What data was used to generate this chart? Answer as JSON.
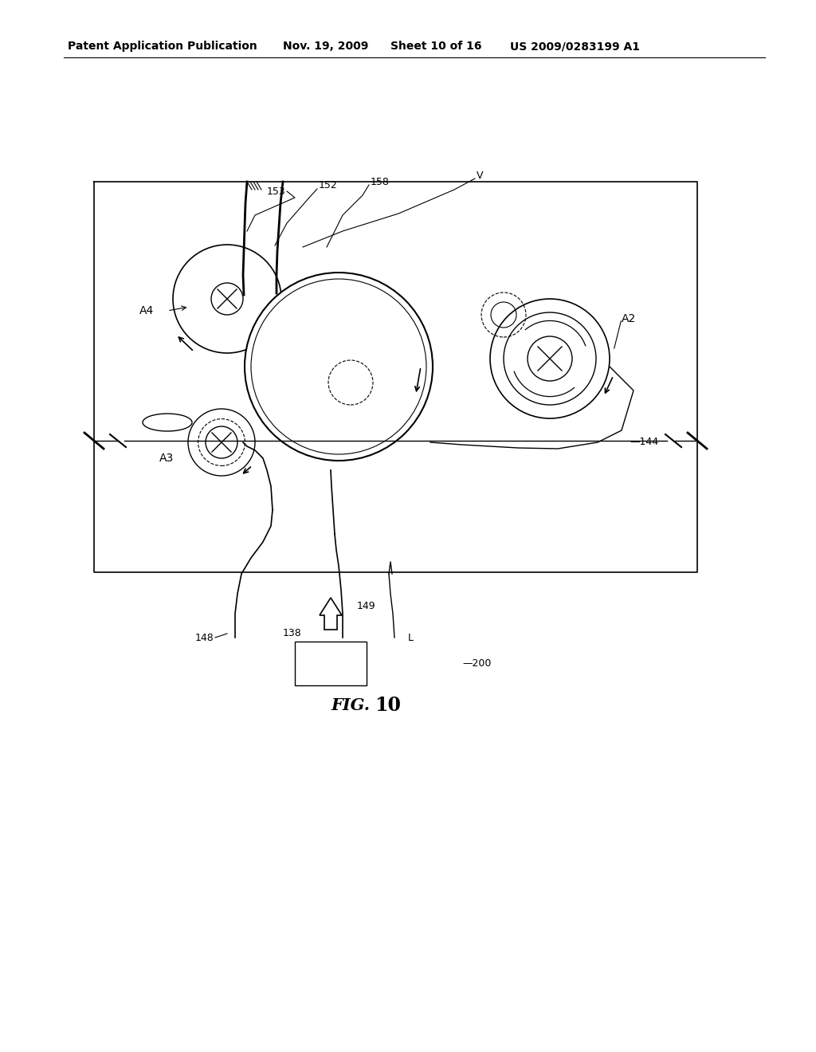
{
  "bg_color": "#ffffff",
  "header_text": "Patent Application Publication",
  "header_date": "Nov. 19, 2009",
  "header_sheet": "Sheet 10 of 16",
  "header_patent": "US 2009/0283199 A1",
  "fig_label": "FIG. 10"
}
